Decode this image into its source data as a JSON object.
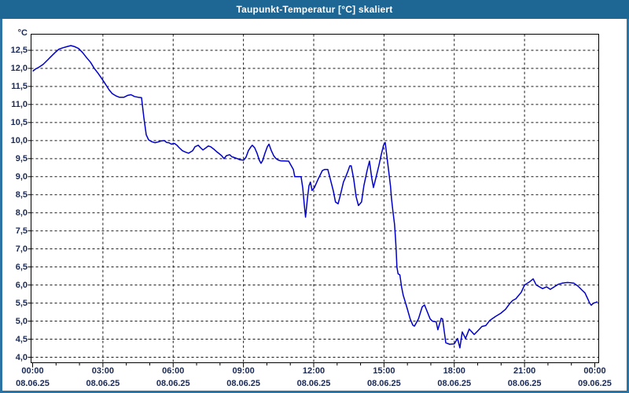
{
  "window": {
    "title": "Taupunkt-Temperatur [°C] skaliert"
  },
  "colors": {
    "titlebar_bg": "#1E6795",
    "titlebar_text": "#FFFFFF",
    "frame_border": "#2B74A4",
    "plot_bg": "#FFFFFF",
    "grid": "#161616",
    "axis_border": "#000000",
    "axis_text": "#1B2A55",
    "line": "#0000C8"
  },
  "chart_data": {
    "type": "line",
    "title": "Taupunkt-Temperatur [°C] skaliert",
    "xlabel": "",
    "ylabel": "°C",
    "y_unit_label": "°C",
    "ylim": [
      4.0,
      12.5
    ],
    "y_tick_step": 0.5,
    "y_tick_values": [
      12.5,
      12.0,
      11.5,
      11.0,
      10.5,
      10.0,
      9.5,
      9.0,
      8.5,
      8.0,
      7.5,
      7.0,
      6.5,
      6.0,
      5.5,
      5.0,
      4.5,
      4.0
    ],
    "y_tick_labels": [
      "12,5",
      "12,0",
      "11,5",
      "11,0",
      "10,5",
      "10,0",
      "9,5",
      "9,0",
      "8,5",
      "8,0",
      "7,5",
      "7,0",
      "6,5",
      "6,0",
      "5,5",
      "5,0",
      "4,5",
      "4,0"
    ],
    "x_range_hours": [
      0,
      24
    ],
    "x_major_tick_hours": 3,
    "x_minor_tick_hours": 1,
    "x_ticks": [
      {
        "hour": 0,
        "time": "00:00",
        "date": "08.06.25"
      },
      {
        "hour": 3,
        "time": "03:00",
        "date": "08.06.25"
      },
      {
        "hour": 6,
        "time": "06:00",
        "date": "08.06.25"
      },
      {
        "hour": 9,
        "time": "09:00",
        "date": "08.06.25"
      },
      {
        "hour": 12,
        "time": "12:00",
        "date": "08.06.25"
      },
      {
        "hour": 15,
        "time": "15:00",
        "date": "08.06.25"
      },
      {
        "hour": 18,
        "time": "18:00",
        "date": "08.06.25"
      },
      {
        "hour": 21,
        "time": "21:00",
        "date": "08.06.25"
      },
      {
        "hour": 24,
        "time": "00:00",
        "date": "09.06.25"
      }
    ],
    "grid": "dashed",
    "legend": "none",
    "series": [
      {
        "name": "Taupunkt-Temperatur",
        "points": [
          [
            0,
            11.92
          ],
          [
            0.12,
            11.98
          ],
          [
            0.29,
            12.04
          ],
          [
            0.45,
            12.11
          ],
          [
            0.62,
            12.22
          ],
          [
            0.79,
            12.33
          ],
          [
            0.96,
            12.44
          ],
          [
            1.12,
            12.53
          ],
          [
            1.29,
            12.57
          ],
          [
            1.46,
            12.6
          ],
          [
            1.63,
            12.63
          ],
          [
            1.8,
            12.6
          ],
          [
            1.96,
            12.55
          ],
          [
            2.13,
            12.44
          ],
          [
            2.3,
            12.3
          ],
          [
            2.47,
            12.17
          ],
          [
            2.63,
            12.0
          ],
          [
            2.8,
            11.86
          ],
          [
            2.97,
            11.7
          ],
          [
            3.07,
            11.6
          ],
          [
            3.17,
            11.5
          ],
          [
            3.27,
            11.4
          ],
          [
            3.4,
            11.3
          ],
          [
            3.55,
            11.24
          ],
          [
            3.7,
            11.2
          ],
          [
            3.9,
            11.2
          ],
          [
            4.05,
            11.25
          ],
          [
            4.2,
            11.27
          ],
          [
            4.35,
            11.22
          ],
          [
            4.5,
            11.2
          ],
          [
            4.65,
            11.19
          ],
          [
            4.75,
            10.63
          ],
          [
            4.85,
            10.16
          ],
          [
            4.95,
            10.02
          ],
          [
            5.08,
            9.97
          ],
          [
            5.22,
            9.94
          ],
          [
            5.35,
            9.96
          ],
          [
            5.49,
            9.99
          ],
          [
            5.62,
            10.0
          ],
          [
            5.72,
            9.95
          ],
          [
            5.82,
            9.94
          ],
          [
            5.92,
            9.9
          ],
          [
            6.06,
            9.92
          ],
          [
            6.16,
            9.87
          ],
          [
            6.26,
            9.8
          ],
          [
            6.39,
            9.72
          ],
          [
            6.53,
            9.68
          ],
          [
            6.66,
            9.65
          ],
          [
            6.83,
            9.72
          ],
          [
            6.93,
            9.83
          ],
          [
            7.07,
            9.87
          ],
          [
            7.17,
            9.8
          ],
          [
            7.27,
            9.74
          ],
          [
            7.4,
            9.8
          ],
          [
            7.5,
            9.85
          ],
          [
            7.6,
            9.83
          ],
          [
            7.74,
            9.76
          ],
          [
            7.84,
            9.7
          ],
          [
            7.94,
            9.65
          ],
          [
            8.07,
            9.58
          ],
          [
            8.17,
            9.5
          ],
          [
            8.27,
            9.58
          ],
          [
            8.41,
            9.61
          ],
          [
            8.51,
            9.55
          ],
          [
            8.61,
            9.53
          ],
          [
            8.74,
            9.5
          ],
          [
            8.84,
            9.47
          ],
          [
            9.01,
            9.46
          ],
          [
            9.11,
            9.54
          ],
          [
            9.21,
            9.72
          ],
          [
            9.32,
            9.83
          ],
          [
            9.38,
            9.87
          ],
          [
            9.48,
            9.8
          ],
          [
            9.58,
            9.65
          ],
          [
            9.68,
            9.45
          ],
          [
            9.75,
            9.37
          ],
          [
            9.82,
            9.45
          ],
          [
            9.92,
            9.65
          ],
          [
            10.02,
            9.83
          ],
          [
            10.09,
            9.9
          ],
          [
            10.19,
            9.72
          ],
          [
            10.29,
            9.58
          ],
          [
            10.39,
            9.5
          ],
          [
            10.49,
            9.46
          ],
          [
            10.59,
            9.44
          ],
          [
            10.93,
            9.43
          ],
          [
            11.13,
            9.2
          ],
          [
            11.19,
            9.0
          ],
          [
            11.46,
            9.0
          ],
          [
            11.53,
            8.7
          ],
          [
            11.6,
            8.2
          ],
          [
            11.65,
            7.88
          ],
          [
            11.73,
            8.4
          ],
          [
            11.8,
            8.75
          ],
          [
            11.86,
            8.85
          ],
          [
            11.93,
            8.62
          ],
          [
            12.03,
            8.7
          ],
          [
            12.2,
            8.95
          ],
          [
            12.37,
            9.17
          ],
          [
            12.47,
            9.2
          ],
          [
            12.6,
            9.2
          ],
          [
            12.7,
            8.95
          ],
          [
            12.84,
            8.6
          ],
          [
            12.93,
            8.3
          ],
          [
            13.04,
            8.25
          ],
          [
            13.14,
            8.5
          ],
          [
            13.27,
            8.85
          ],
          [
            13.37,
            9.0
          ],
          [
            13.47,
            9.17
          ],
          [
            13.54,
            9.3
          ],
          [
            13.6,
            9.3
          ],
          [
            13.71,
            8.93
          ],
          [
            13.81,
            8.45
          ],
          [
            13.91,
            8.2
          ],
          [
            14.04,
            8.3
          ],
          [
            14.14,
            8.75
          ],
          [
            14.28,
            9.17
          ],
          [
            14.38,
            9.43
          ],
          [
            14.48,
            8.95
          ],
          [
            14.55,
            8.7
          ],
          [
            14.65,
            8.95
          ],
          [
            14.78,
            9.3
          ],
          [
            14.88,
            9.6
          ],
          [
            14.98,
            9.87
          ],
          [
            15.05,
            9.95
          ],
          [
            15.15,
            9.43
          ],
          [
            15.22,
            9.06
          ],
          [
            15.28,
            8.73
          ],
          [
            15.32,
            8.4
          ],
          [
            15.38,
            8.05
          ],
          [
            15.45,
            7.68
          ],
          [
            15.49,
            7.3
          ],
          [
            15.52,
            6.96
          ],
          [
            15.55,
            6.5
          ],
          [
            15.6,
            6.31
          ],
          [
            15.68,
            6.28
          ],
          [
            15.75,
            5.95
          ],
          [
            15.82,
            5.72
          ],
          [
            15.89,
            5.57
          ],
          [
            15.99,
            5.35
          ],
          [
            16.12,
            5.06
          ],
          [
            16.23,
            4.89
          ],
          [
            16.3,
            4.86
          ],
          [
            16.47,
            5.06
          ],
          [
            16.63,
            5.39
          ],
          [
            16.73,
            5.45
          ],
          [
            16.97,
            5.06
          ],
          [
            17.07,
            5.0
          ],
          [
            17.23,
            4.98
          ],
          [
            17.3,
            4.76
          ],
          [
            17.44,
            5.08
          ],
          [
            17.5,
            5.06
          ],
          [
            17.64,
            4.4
          ],
          [
            17.8,
            4.36
          ],
          [
            18.0,
            4.37
          ],
          [
            18.14,
            4.52
          ],
          [
            18.24,
            4.26
          ],
          [
            18.34,
            4.7
          ],
          [
            18.48,
            4.52
          ],
          [
            18.64,
            4.78
          ],
          [
            18.75,
            4.7
          ],
          [
            18.85,
            4.63
          ],
          [
            19.02,
            4.74
          ],
          [
            19.18,
            4.85
          ],
          [
            19.35,
            4.88
          ],
          [
            19.52,
            5.02
          ],
          [
            19.76,
            5.13
          ],
          [
            19.99,
            5.22
          ],
          [
            20.19,
            5.33
          ],
          [
            20.36,
            5.48
          ],
          [
            20.49,
            5.57
          ],
          [
            20.63,
            5.62
          ],
          [
            20.86,
            5.8
          ],
          [
            21.0,
            6.0
          ],
          [
            21.2,
            6.08
          ],
          [
            21.37,
            6.17
          ],
          [
            21.5,
            6.0
          ],
          [
            21.77,
            5.9
          ],
          [
            21.94,
            5.95
          ],
          [
            22.1,
            5.88
          ],
          [
            22.44,
            6.02
          ],
          [
            22.6,
            6.05
          ],
          [
            22.84,
            6.07
          ],
          [
            23.11,
            6.05
          ],
          [
            23.28,
            5.97
          ],
          [
            23.45,
            5.86
          ],
          [
            23.58,
            5.78
          ],
          [
            23.71,
            5.6
          ],
          [
            23.78,
            5.5
          ],
          [
            23.85,
            5.44
          ],
          [
            23.95,
            5.5
          ],
          [
            24.05,
            5.52
          ],
          [
            24.12,
            5.54
          ]
        ]
      }
    ]
  }
}
